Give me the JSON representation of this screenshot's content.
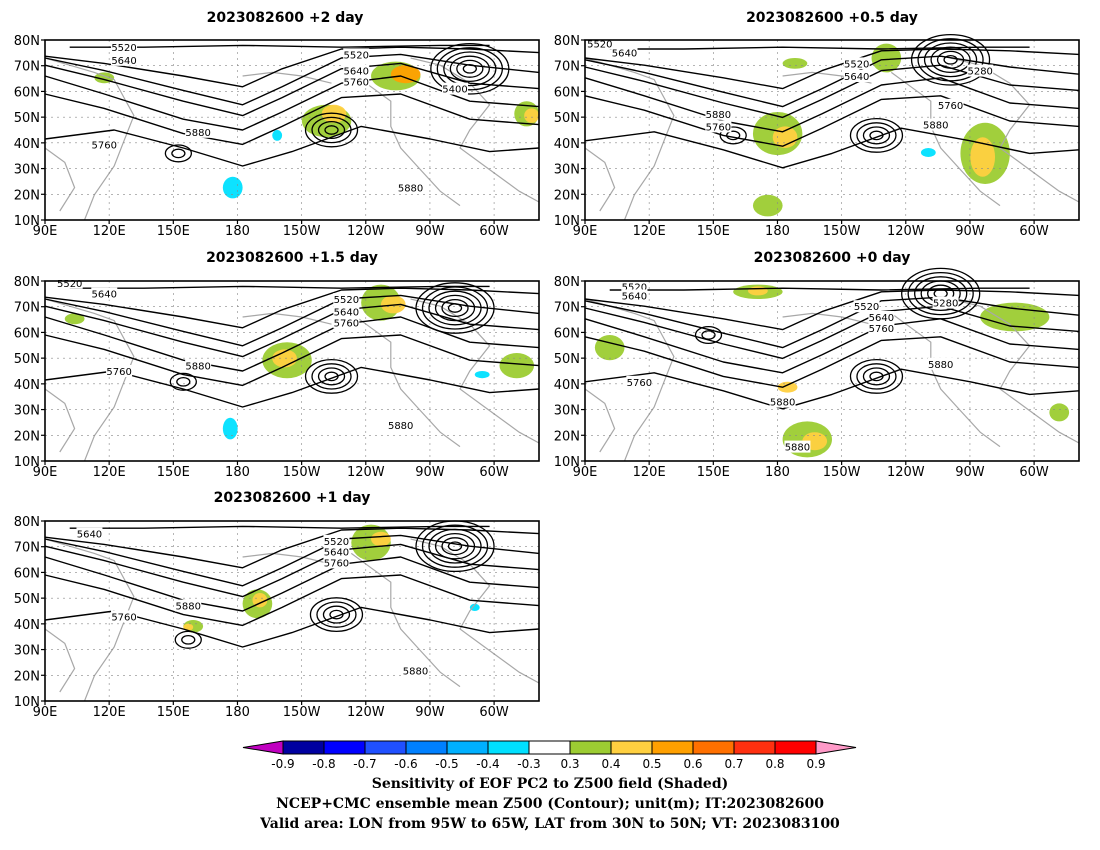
{
  "panels": [
    {
      "title": "2023082600 +2 day",
      "ylabels": [
        "80N",
        "70N",
        "60N",
        "50N",
        "40N",
        "30N",
        "20N",
        "10N"
      ],
      "xlabels": [
        "90E",
        "120E",
        "150E",
        "180",
        "150W",
        "120W",
        "90W",
        "60W"
      ],
      "contour_labels": [
        "5520",
        "5640",
        "5520",
        "5640",
        "5760",
        "5400",
        "5880",
        "5760",
        "5880"
      ]
    },
    {
      "title": "2023082600 +0.5 day",
      "ylabels": [
        "80N",
        "70N",
        "60N",
        "50N",
        "40N",
        "30N",
        "20N",
        "10N"
      ],
      "xlabels": [
        "90E",
        "120E",
        "150E",
        "180",
        "150W",
        "120W",
        "90W",
        "60W"
      ],
      "contour_labels": [
        "5520",
        "5640",
        "5520",
        "5640",
        "5280",
        "5760",
        "5880",
        "5760",
        "5880"
      ]
    },
    {
      "title": "2023082600 +1.5 day",
      "ylabels": [
        "80N",
        "70N",
        "60N",
        "50N",
        "40N",
        "30N",
        "20N",
        "10N"
      ],
      "xlabels": [
        "90E",
        "120E",
        "150E",
        "180",
        "150W",
        "120W",
        "90W",
        "60W"
      ],
      "contour_labels": [
        "5520",
        "5640",
        "5520",
        "5640",
        "5760",
        "5760",
        "5880",
        "5880"
      ]
    },
    {
      "title": "2023082600 +0 day",
      "ylabels": [
        "80N",
        "70N",
        "60N",
        "50N",
        "40N",
        "30N",
        "20N",
        "10N"
      ],
      "xlabels": [
        "90E",
        "120E",
        "150E",
        "180",
        "150W",
        "120W",
        "90W",
        "60W"
      ],
      "contour_labels": [
        "5520",
        "5640",
        "5280",
        "5520",
        "5640",
        "5760",
        "5760",
        "5880",
        "5880",
        "5880"
      ]
    },
    {
      "title": "2023082600 +1 day",
      "ylabels": [
        "80N",
        "70N",
        "60N",
        "50N",
        "40N",
        "30N",
        "20N",
        "10N"
      ],
      "xlabels": [
        "90E",
        "120E",
        "150E",
        "180",
        "150W",
        "120W",
        "90W",
        "60W"
      ],
      "contour_labels": [
        "5640",
        "5520",
        "5640",
        "5760",
        "5880",
        "5760",
        "5880"
      ]
    }
  ],
  "colorbar": {
    "ticks": [
      "-0.9",
      "-0.8",
      "-0.7",
      "-0.6",
      "-0.5",
      "-0.4",
      "-0.3",
      "0.3",
      "0.4",
      "0.5",
      "0.6",
      "0.7",
      "0.8",
      "0.9"
    ],
    "colors": [
      "#c000c0",
      "#0000a0",
      "#0000ff",
      "#2050ff",
      "#0080ff",
      "#00b0ff",
      "#00e0ff",
      "#ffffff",
      "#9ccc32",
      "#ffd040",
      "#ffa000",
      "#ff7000",
      "#ff3010",
      "#ff0000",
      "#ff9ac8"
    ]
  },
  "footer": {
    "line1": "Sensitivity of EOF PC2 to Z500 field (Shaded)",
    "line2": "NCEP+CMC ensemble mean Z500 (Contour); unit(m); IT:2023082600",
    "line3": "Valid area: LON from 95W to 65W, LAT from 30N to 50N; VT: 2023083100"
  }
}
